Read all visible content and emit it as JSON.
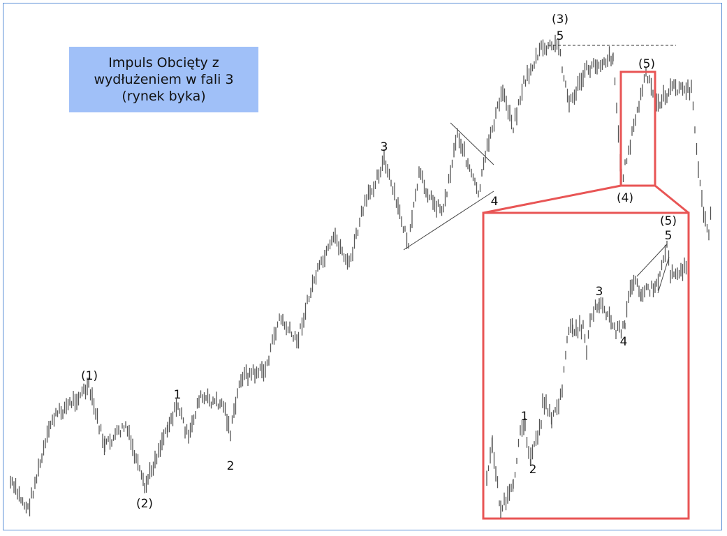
{
  "chart_data": {
    "type": "line",
    "title": "Impuls Obcięty z wydłużeniem w fali 3 (rynek byka)",
    "title_lines": [
      "Impuls Obcięty z",
      "wydłużeniem w fali 3",
      "(rynek byka)"
    ],
    "xlabel": "",
    "ylabel": "",
    "grid": false,
    "colors": {
      "bars": "#555555",
      "highlight": "#e85555",
      "title_bg": "#a0c0f8",
      "frame": "#5b8fd6"
    },
    "main_series": {
      "x": [
        0,
        25,
        60,
        112,
        135,
        165,
        192,
        225,
        240,
        255,
        270,
        305,
        315,
        330,
        365,
        385,
        410,
        435,
        465,
        485,
        505,
        535,
        570,
        585,
        605,
        620,
        640,
        670,
        685,
        705,
        720,
        735,
        760,
        785,
        800,
        825,
        863,
        875,
        910,
        925,
        950,
        975,
        990,
        1000,
        1005
      ],
      "price": [
        7,
        1.4,
        20,
        26.4,
        14.3,
        18.6,
        5.7,
        18.6,
        22.9,
        15.7,
        24.3,
        22.9,
        17.1,
        28.6,
        30,
        40.7,
        35.7,
        48.6,
        57.1,
        51.4,
        62.9,
        72.9,
        55.7,
        70,
        64.3,
        62.9,
        78.6,
        65.7,
        77.1,
        87.1,
        80,
        88.6,
        95.7,
        96.4,
        84.3,
        91.4,
        94.3,
        68.6,
        90.7,
        84.3,
        87.9,
        87.1,
        64.3,
        57.1,
        68.6
      ]
    },
    "inset_series": {
      "x": [
        5,
        13,
        25,
        43,
        53,
        60,
        68,
        83,
        85,
        98,
        113,
        120,
        128,
        143,
        148,
        153,
        166,
        178,
        190,
        203,
        208,
        218,
        226,
        248,
        263,
        268,
        293
      ],
      "price": [
        7.1,
        15,
        1.4,
        5.7,
        18.6,
        18.3,
        11.4,
        19.3,
        24.3,
        20,
        25,
        37.1,
        38.6,
        38.6,
        34.3,
        40.7,
        44,
        41.4,
        37.9,
        38.6,
        45,
        49.3,
        45.7,
        47.1,
        55.7,
        50,
        50.7
      ]
    },
    "wave_labels": {
      "main": {
        "w1": "(1)",
        "w2": "(2)",
        "w3": "(3)",
        "w4": "(4)",
        "w5": "(5)"
      },
      "sub": {
        "s1": "1",
        "s2": "2",
        "s3": "3",
        "s4": "4",
        "s5": "5"
      },
      "inset": {
        "i1": "1",
        "i2": "2",
        "i3": "3",
        "i4": "4",
        "i5": "5",
        "i5p": "(5)"
      }
    }
  }
}
